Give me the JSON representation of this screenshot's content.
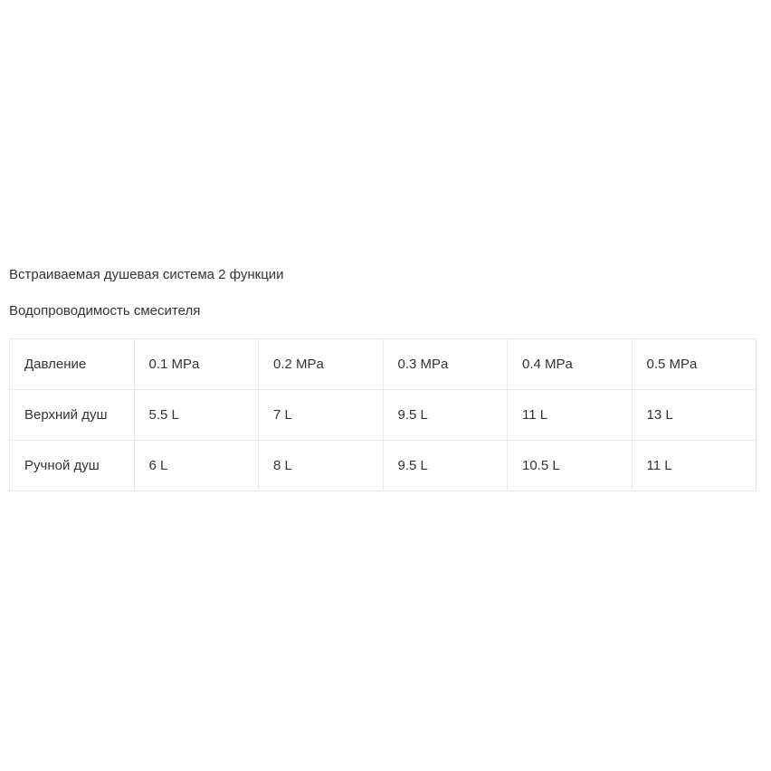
{
  "page": {
    "heading": "Встраиваемая душевая система 2 функции",
    "subheading": "Водопроводимость смесителя"
  },
  "table": {
    "rows": [
      [
        "Давление",
        "0.1 MPa",
        "0.2 MPa",
        "0.3 MPa",
        "0.4 MPa",
        "0.5 MPa"
      ],
      [
        "Верхний душ",
        "5.5 L",
        "7 L",
        "9.5 L",
        "11 L",
        "13 L"
      ],
      [
        "Ручной душ",
        "6 L",
        "8 L",
        "9.5 L",
        "10.5 L",
        "11 L"
      ]
    ]
  },
  "colors": {
    "text": "#333333",
    "border": "#e8e8e8",
    "background": "#ffffff"
  }
}
